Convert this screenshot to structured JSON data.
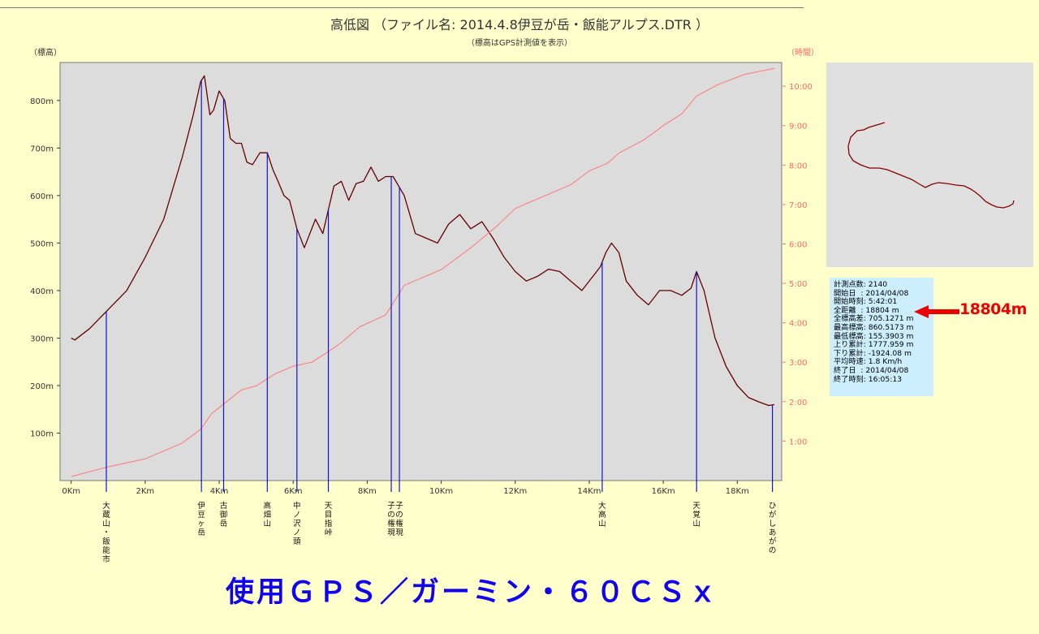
{
  "chart_data": {
    "type": "line",
    "title": "高低図 （ファイル名:  2014.4.8伊豆が岳・飯能アルプス.DTR ）",
    "subtitle": "（標高はGPS計測値を表示）",
    "ylabel_left": "（標高）",
    "ylabel_right": "（時間）",
    "x_unit": "Km",
    "xlim": [
      -0.3,
      19.2
    ],
    "ylim_left": [
      0,
      880
    ],
    "ylim_right": [
      0,
      10.6
    ],
    "x_ticks": [
      0,
      2,
      4,
      6,
      8,
      10,
      12,
      14,
      16,
      18
    ],
    "x_tick_labels": [
      "0Km",
      "2Km",
      "4Km",
      "6Km",
      "8Km",
      "10Km",
      "12Km",
      "14Km",
      "16Km",
      "18Km"
    ],
    "y_left_ticks": [
      100,
      200,
      300,
      400,
      500,
      600,
      700,
      800
    ],
    "y_left_tick_labels": [
      "100m",
      "200m",
      "300m",
      "400m",
      "500m",
      "600m",
      "700m",
      "800m"
    ],
    "y_right_ticks": [
      1,
      2,
      3,
      4,
      5,
      6,
      7,
      8,
      9,
      10
    ],
    "y_right_tick_labels": [
      "1:00",
      "2:00",
      "3:00",
      "4:00",
      "5:00",
      "6:00",
      "7:00",
      "8:00",
      "9:00",
      "10:00"
    ],
    "grid": false,
    "series": [
      {
        "role": "elevation",
        "axis": "left",
        "color": "#660000",
        "x": [
          0,
          0.1,
          0.5,
          1,
          1.5,
          2,
          2.5,
          3,
          3.3,
          3.5,
          3.6,
          3.75,
          3.85,
          4.0,
          4.15,
          4.3,
          4.45,
          4.6,
          4.75,
          4.9,
          5.1,
          5.3,
          5.45,
          5.6,
          5.75,
          5.9,
          6.1,
          6.3,
          6.6,
          6.8,
          6.95,
          7.1,
          7.3,
          7.5,
          7.7,
          7.9,
          8.1,
          8.3,
          8.5,
          8.7,
          9.0,
          9.3,
          9.6,
          9.9,
          10.2,
          10.5,
          10.8,
          11.1,
          11.4,
          11.7,
          12.0,
          12.3,
          12.6,
          12.9,
          13.2,
          13.5,
          13.8,
          14.1,
          14.3,
          14.45,
          14.6,
          14.8,
          15.0,
          15.3,
          15.6,
          15.9,
          16.2,
          16.5,
          16.75,
          16.9,
          17.1,
          17.4,
          17.7,
          18.0,
          18.3,
          18.6,
          18.85,
          19.0
        ],
        "values": [
          300,
          296,
          320,
          360,
          400,
          470,
          550,
          680,
          770,
          840,
          852,
          770,
          780,
          820,
          800,
          720,
          710,
          710,
          670,
          665,
          690,
          690,
          655,
          628,
          600,
          590,
          530,
          490,
          550,
          520,
          570,
          620,
          630,
          590,
          625,
          630,
          660,
          630,
          640,
          640,
          600,
          520,
          510,
          500,
          540,
          560,
          530,
          545,
          510,
          470,
          440,
          420,
          430,
          445,
          440,
          420,
          400,
          430,
          450,
          480,
          500,
          480,
          420,
          390,
          370,
          400,
          400,
          390,
          405,
          440,
          400,
          300,
          240,
          200,
          175,
          165,
          158,
          160
        ]
      },
      {
        "role": "time",
        "axis": "right",
        "color": "#ff7777",
        "x": [
          0,
          1,
          2,
          3,
          3.5,
          3.8,
          4.2,
          4.6,
          5.0,
          5.5,
          6.0,
          6.5,
          7.0,
          7.3,
          7.8,
          8.5,
          8.8,
          9.0,
          9.5,
          10.0,
          10.8,
          11.5,
          12.0,
          12.5,
          13.0,
          13.5,
          14.0,
          14.5,
          14.8,
          15.5,
          16.0,
          16.5,
          16.9,
          17.5,
          18.2,
          19.0
        ],
        "values": [
          0.1,
          0.35,
          0.55,
          0.95,
          1.3,
          1.7,
          2.0,
          2.3,
          2.4,
          2.7,
          2.9,
          3.0,
          3.3,
          3.5,
          3.9,
          4.2,
          4.65,
          4.95,
          5.15,
          5.35,
          5.9,
          6.45,
          6.9,
          7.1,
          7.3,
          7.5,
          7.85,
          8.05,
          8.3,
          8.65,
          9.0,
          9.3,
          9.75,
          10.05,
          10.3,
          10.45
        ]
      }
    ],
    "markers": [
      {
        "x": 0.95,
        "label": "大蔵山・飯能市"
      },
      {
        "x": 3.52,
        "label": "伊豆ヶ岳"
      },
      {
        "x": 4.12,
        "label": "古御岳"
      },
      {
        "x": 5.3,
        "label": "高畑山"
      },
      {
        "x": 6.1,
        "label": "中ノ沢ノ頭"
      },
      {
        "x": 6.95,
        "label": "天目指峠"
      },
      {
        "x": 8.65,
        "label": "子の権現"
      },
      {
        "x": 8.87,
        "label": "子の権現"
      },
      {
        "x": 14.35,
        "label": "大高山"
      },
      {
        "x": 16.9,
        "label": "天覚山"
      },
      {
        "x": 18.95,
        "label": "ひがしあがの"
      }
    ]
  },
  "overview": {
    "stats_lines": [
      "計測点数: 2140",
      "開始日  : 2014/04/08",
      "開始時刻: 5:42:01",
      "全距離  : 18804 m",
      "全標高差: 705.1271 m",
      "最高標高: 860.5173 m",
      "最低標高: 155.3903 m",
      "上り累計: 1777.959 m",
      "下り累計: -1924.08 m",
      "平均時速: 1.8 Km/h",
      "終了日  : 2014/04/08",
      "終了時刻: 16:05:13"
    ],
    "distance_callout": "18804m",
    "gps_caption": "使用ＧＰＳ／ガーミン・６０ＣＳｘ",
    "track_color": "#880000",
    "callout_color": "#ee0000"
  }
}
